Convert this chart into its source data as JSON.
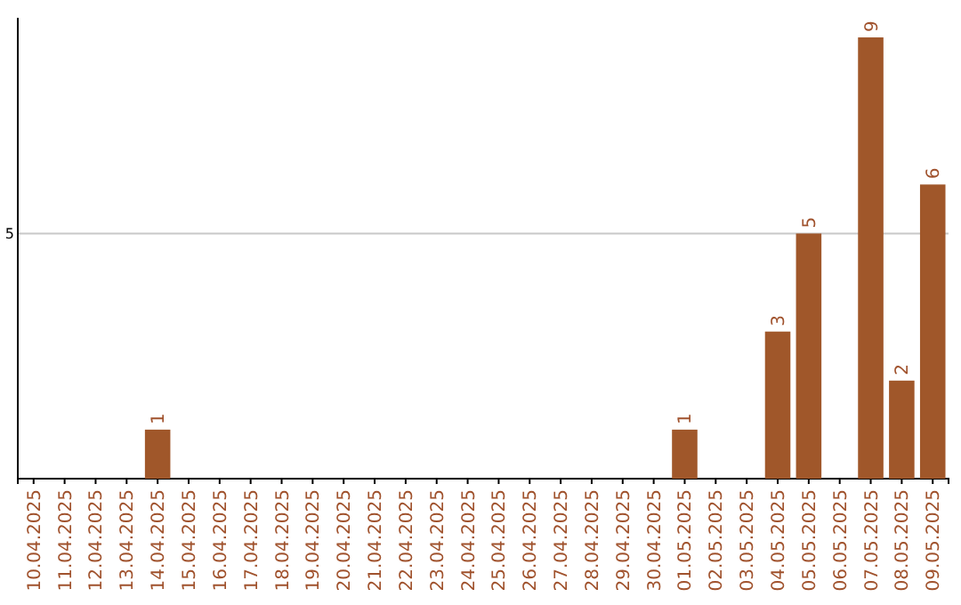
{
  "chart_data": {
    "type": "bar",
    "categories": [
      "10.04.2025",
      "11.04.2025",
      "12.04.2025",
      "13.04.2025",
      "14.04.2025",
      "15.04.2025",
      "16.04.2025",
      "17.04.2025",
      "18.04.2025",
      "19.04.2025",
      "20.04.2025",
      "21.04.2025",
      "22.04.2025",
      "23.04.2025",
      "24.04.2025",
      "25.04.2025",
      "26.04.2025",
      "27.04.2025",
      "28.04.2025",
      "29.04.2025",
      "30.04.2025",
      "01.05.2025",
      "02.05.2025",
      "03.05.2025",
      "04.05.2025",
      "05.05.2025",
      "06.05.2025",
      "07.05.2025",
      "08.05.2025",
      "09.05.2025"
    ],
    "values": [
      0,
      0,
      0,
      0,
      1,
      0,
      0,
      0,
      0,
      0,
      0,
      0,
      0,
      0,
      0,
      0,
      0,
      0,
      0,
      0,
      0,
      1,
      0,
      0,
      3,
      5,
      0,
      9,
      2,
      6
    ],
    "value_labels": [
      null,
      null,
      null,
      null,
      "1",
      null,
      null,
      null,
      null,
      null,
      null,
      null,
      null,
      null,
      null,
      null,
      null,
      null,
      null,
      null,
      null,
      "1",
      null,
      null,
      "3",
      "5",
      null,
      "9",
      "2",
      "6"
    ],
    "color": "#a0572a",
    "ylim": [
      0,
      9.4
    ],
    "yticks": [
      5
    ],
    "grid": "y"
  }
}
